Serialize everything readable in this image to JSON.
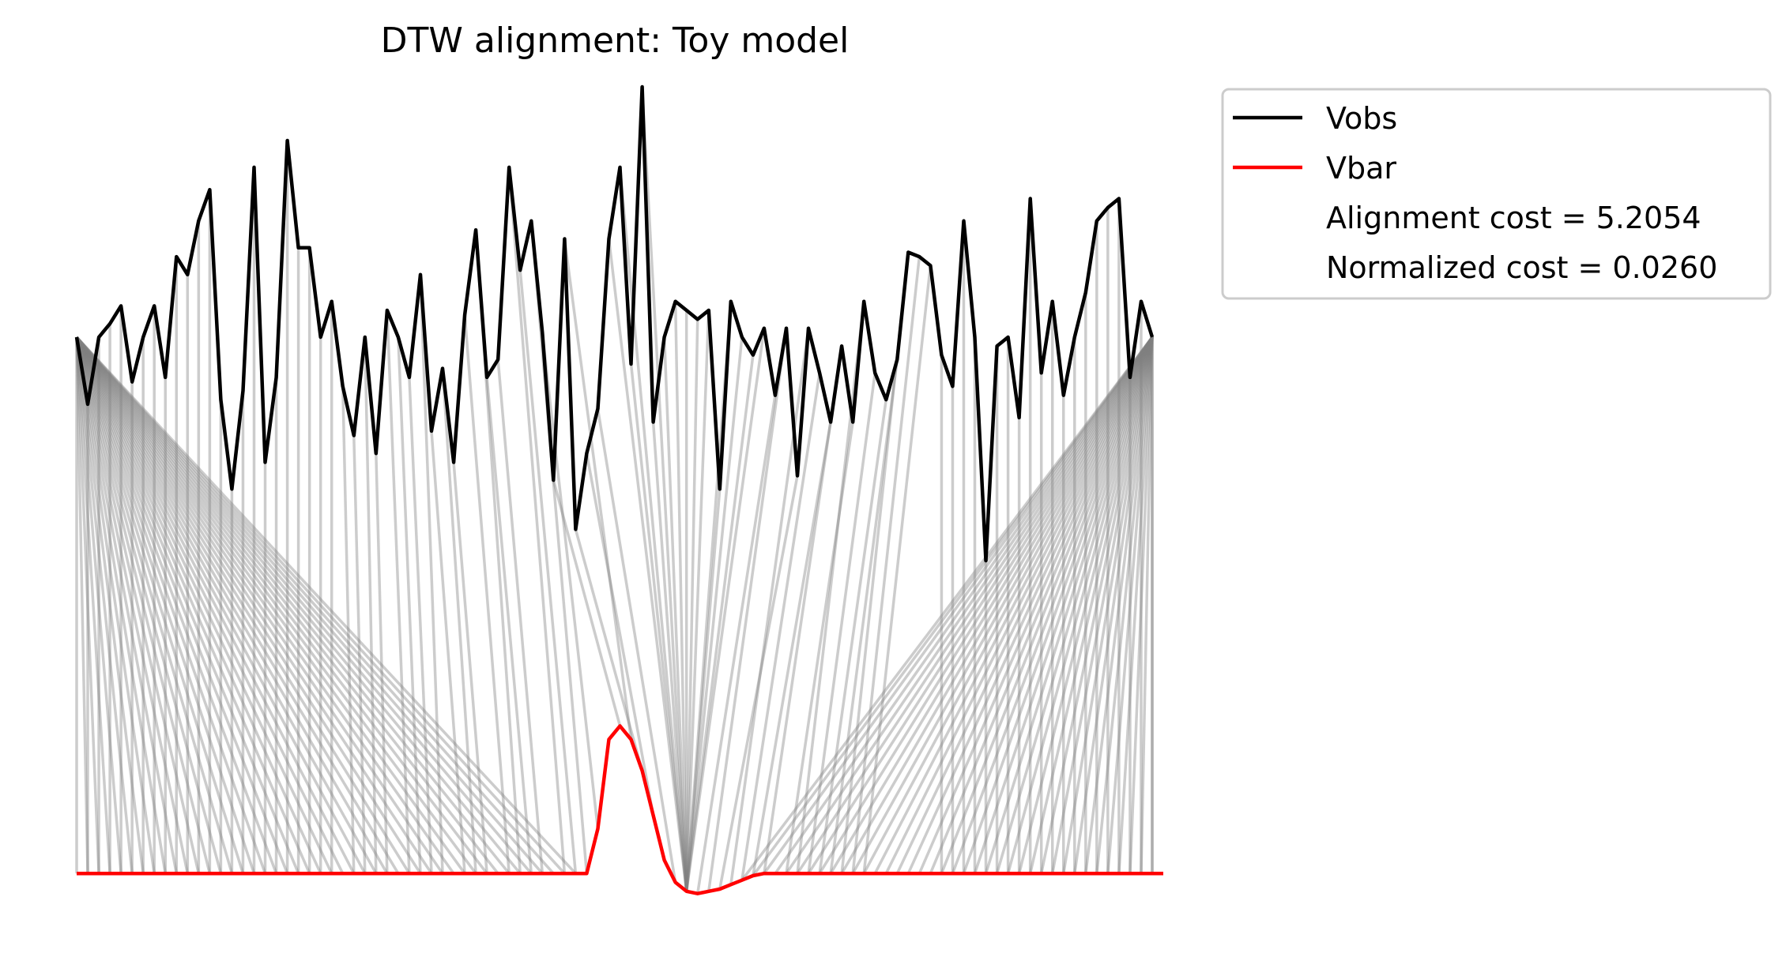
{
  "chart_data": {
    "type": "line",
    "title": "DTW alignment: Toy model",
    "axes_visible": false,
    "grid": false,
    "legend_placement": "outside-upper-right",
    "legend": {
      "entries": [
        "Vobs",
        "Vbar"
      ],
      "notes": [
        "Alignment cost = 5.2054",
        "Normalized cost = 0.0260"
      ]
    },
    "series": [
      {
        "name": "Vobs",
        "color": "#000000",
        "values": [
          0.0,
          -0.15,
          0.0,
          0.03,
          0.07,
          -0.1,
          0.0,
          0.07,
          -0.09,
          0.18,
          0.14,
          0.26,
          0.33,
          -0.14,
          -0.34,
          -0.12,
          0.38,
          -0.28,
          -0.09,
          0.44,
          0.2,
          0.2,
          0.0,
          0.08,
          -0.11,
          -0.22,
          0.0,
          -0.26,
          0.06,
          0.0,
          -0.09,
          0.14,
          -0.21,
          -0.07,
          -0.28,
          0.05,
          0.24,
          -0.09,
          -0.05,
          0.38,
          0.15,
          0.26,
          0.01,
          -0.32,
          0.22,
          -0.43,
          -0.26,
          -0.16,
          0.22,
          0.38,
          -0.06,
          0.56,
          -0.19,
          0.0,
          0.08,
          0.06,
          0.04,
          0.06,
          -0.34,
          0.08,
          0.0,
          -0.04,
          0.02,
          -0.13,
          0.02,
          -0.31,
          0.02,
          -0.08,
          -0.19,
          -0.02,
          -0.19,
          0.08,
          -0.08,
          -0.14,
          -0.05,
          0.19,
          0.18,
          0.16,
          -0.04,
          -0.11,
          0.26,
          0.0,
          -0.5,
          -0.02,
          0.0,
          -0.18,
          0.31,
          -0.08,
          0.08,
          -0.13,
          0.0,
          0.1,
          0.26,
          0.29,
          0.31,
          -0.09,
          0.08,
          0.0
        ]
      },
      {
        "name": "Vbar",
        "color": "#ff0000",
        "values": [
          -1.2,
          -1.2,
          -1.2,
          -1.2,
          -1.2,
          -1.2,
          -1.2,
          -1.2,
          -1.2,
          -1.2,
          -1.2,
          -1.2,
          -1.2,
          -1.2,
          -1.2,
          -1.2,
          -1.2,
          -1.2,
          -1.2,
          -1.2,
          -1.2,
          -1.2,
          -1.2,
          -1.2,
          -1.2,
          -1.2,
          -1.2,
          -1.2,
          -1.2,
          -1.2,
          -1.2,
          -1.2,
          -1.2,
          -1.2,
          -1.2,
          -1.2,
          -1.2,
          -1.2,
          -1.2,
          -1.2,
          -1.2,
          -1.2,
          -1.2,
          -1.2,
          -1.2,
          -1.2,
          -1.2,
          -1.1,
          -0.9,
          -0.87,
          -0.9,
          -0.97,
          -1.07,
          -1.17,
          -1.22,
          -1.24,
          -1.245,
          -1.24,
          -1.235,
          -1.225,
          -1.215,
          -1.205,
          -1.2,
          -1.2,
          -1.2,
          -1.2,
          -1.2,
          -1.2,
          -1.2,
          -1.2,
          -1.2,
          -1.2,
          -1.2,
          -1.2,
          -1.2,
          -1.2,
          -1.2,
          -1.2,
          -1.2,
          -1.2,
          -1.2,
          -1.2,
          -1.2,
          -1.2,
          -1.2,
          -1.2,
          -1.2,
          -1.2,
          -1.2,
          -1.2,
          -1.2,
          -1.2,
          -1.2,
          -1.2,
          -1.2,
          -1.2,
          -1.2,
          -1.2,
          -1.2
        ]
      }
    ],
    "alignment_color": "#808080"
  }
}
